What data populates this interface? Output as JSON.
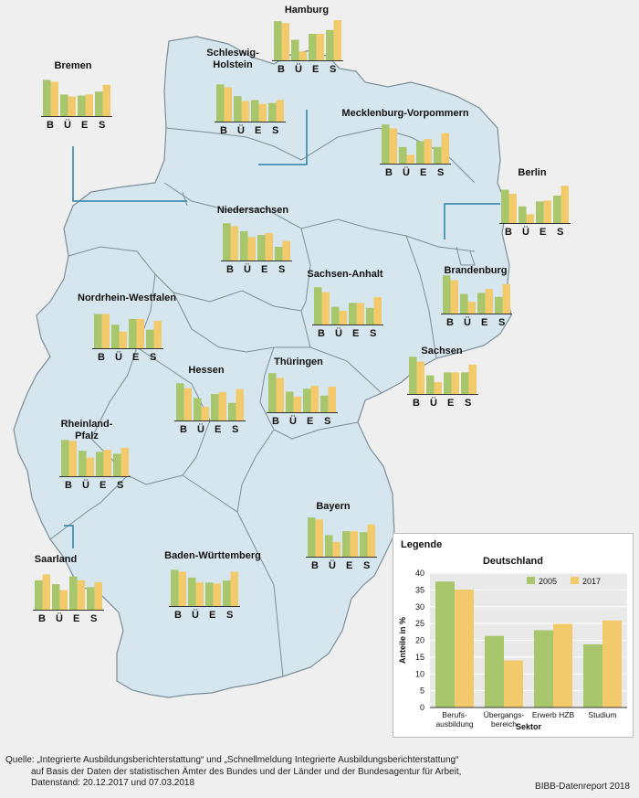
{
  "colors": {
    "y2005": "#a8c66c",
    "y2017": "#f2c96b",
    "land": "#d6e6ee",
    "border": "#7a8e99",
    "leader": "#2b7fa8",
    "bg": "#efefef"
  },
  "sector_letters": [
    "B",
    "Ü",
    "E",
    "S"
  ],
  "states": [
    {
      "name": "Hamburg",
      "values": [
        [
          40,
          38
        ],
        [
          21,
          9
        ],
        [
          27,
          27
        ],
        [
          31,
          41
        ]
      ]
    },
    {
      "name": "Schleswig-\nHolstein",
      "values": [
        [
          38,
          35
        ],
        [
          26,
          21
        ],
        [
          22,
          18
        ],
        [
          19,
          22
        ]
      ]
    },
    {
      "name": "Bremen",
      "values": [
        [
          37,
          35
        ],
        [
          22,
          20
        ],
        [
          21,
          22
        ],
        [
          25,
          32
        ]
      ]
    },
    {
      "name": "Mecklenburg-Vorpommern",
      "values": [
        [
          40,
          36
        ],
        [
          17,
          9
        ],
        [
          23,
          25
        ],
        [
          17,
          31
        ]
      ]
    },
    {
      "name": "Berlin",
      "values": [
        [
          34,
          30
        ],
        [
          17,
          9
        ],
        [
          22,
          23
        ],
        [
          28,
          38
        ]
      ]
    },
    {
      "name": "Niedersachsen",
      "values": [
        [
          38,
          35
        ],
        [
          30,
          24
        ],
        [
          26,
          28
        ],
        [
          14,
          20
        ]
      ]
    },
    {
      "name": "Sachsen-Anhalt",
      "values": [
        [
          38,
          33
        ],
        [
          18,
          14
        ],
        [
          22,
          22
        ],
        [
          17,
          28
        ]
      ]
    },
    {
      "name": "Brandenburg",
      "values": [
        [
          39,
          34
        ],
        [
          20,
          12
        ],
        [
          21,
          25
        ],
        [
          17,
          30
        ]
      ]
    },
    {
      "name": "Nordrhein-Westfalen",
      "values": [
        [
          35,
          35
        ],
        [
          24,
          17
        ],
        [
          30,
          30
        ],
        [
          19,
          28
        ]
      ]
    },
    {
      "name": "Hessen",
      "values": [
        [
          38,
          33
        ],
        [
          23,
          14
        ],
        [
          27,
          29
        ],
        [
          18,
          32
        ]
      ]
    },
    {
      "name": "Thüringen",
      "values": [
        [
          40,
          35
        ],
        [
          21,
          16
        ],
        [
          24,
          27
        ],
        [
          17,
          26
        ]
      ]
    },
    {
      "name": "Sachsen",
      "values": [
        [
          38,
          33
        ],
        [
          19,
          12
        ],
        [
          22,
          22
        ],
        [
          22,
          30
        ]
      ]
    },
    {
      "name": "Rheinland-\nPfalz",
      "values": [
        [
          37,
          36
        ],
        [
          26,
          19
        ],
        [
          25,
          27
        ],
        [
          23,
          29
        ]
      ]
    },
    {
      "name": "Bayern",
      "values": [
        [
          40,
          38
        ],
        [
          22,
          15
        ],
        [
          26,
          26
        ],
        [
          25,
          33
        ]
      ]
    },
    {
      "name": "Saarland",
      "values": [
        [
          30,
          36
        ],
        [
          26,
          20
        ],
        [
          34,
          30
        ],
        [
          23,
          28
        ]
      ]
    },
    {
      "name": "Baden-Württemberg",
      "values": [
        [
          37,
          35
        ],
        [
          29,
          24
        ],
        [
          24,
          23
        ],
        [
          26,
          35
        ]
      ]
    }
  ],
  "legend": {
    "title": "Legende",
    "subtitle": "Deutschland"
  },
  "chart_data": {
    "type": "bar",
    "title": "Deutschland",
    "categories": [
      "Berufs-\nausbildung",
      "Übergangs-\nbereich",
      "Erwerb HZB",
      "Studium"
    ],
    "series": [
      {
        "name": "2005",
        "values": [
          37.5,
          21.3,
          23.0,
          18.8
        ]
      },
      {
        "name": "2017",
        "values": [
          35.1,
          14.0,
          24.9,
          25.9
        ]
      }
    ],
    "xlabel": "Sektor",
    "ylabel": "Anteile in %",
    "ylim": [
      0,
      40
    ],
    "yticks": [
      0,
      5,
      10,
      15,
      20,
      25,
      30,
      35,
      40
    ],
    "legend_position": "top-right",
    "grid": true
  },
  "source_lines": [
    "Quelle: „Integrierte Ausbildungsberichterstattung“ und „Schnellmeldung Integrierte Ausbildungsberichterstattung“",
    "auf Basis der Daten der statistischen Ämter des Bundes und der Länder und der Bundesagentur für Arbeit,",
    "Datenstand: 20.12.2017 und 07.03.2018"
  ],
  "credit": "BIBB-Datenreport 2018"
}
